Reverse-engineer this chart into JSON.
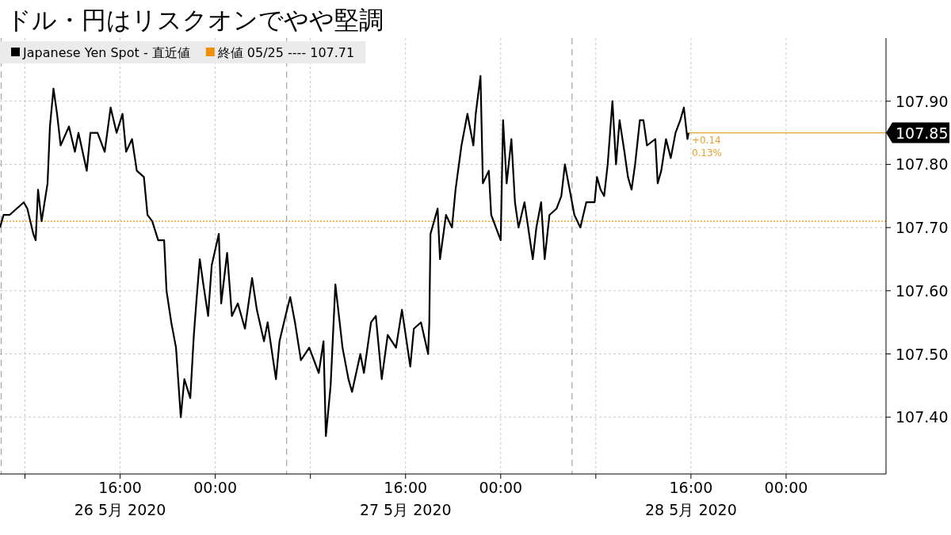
{
  "chart_data": {
    "type": "line",
    "title": "ドル・円はリスクオンでやや堅調",
    "x": [
      "2020-05-26T05:54",
      "2020-05-26T06:12",
      "2020-05-26T06:42",
      "2020-05-26T07:54",
      "2020-05-26T08:12",
      "2020-05-26T08:42",
      "2020-05-26T08:54",
      "2020-05-26T09:06",
      "2020-05-26T09:24",
      "2020-05-26T09:54",
      "2020-05-26T10:06",
      "2020-05-26T10:24",
      "2020-05-26T10:42",
      "2020-05-26T11:00",
      "2020-05-26T11:42",
      "2020-05-26T12:12",
      "2020-05-26T12:30",
      "2020-05-26T13:12",
      "2020-05-26T13:30",
      "2020-05-26T14:06",
      "2020-05-26T14:42",
      "2020-05-26T15:12",
      "2020-05-26T15:42",
      "2020-05-26T16:12",
      "2020-05-26T16:30",
      "2020-05-26T17:00",
      "2020-05-26T17:24",
      "2020-05-26T18:00",
      "2020-05-26T18:18",
      "2020-05-26T18:42",
      "2020-05-26T19:12",
      "2020-05-26T19:42",
      "2020-05-26T19:54",
      "2020-05-26T20:18",
      "2020-05-26T20:30",
      "2020-05-26T20:42",
      "2020-05-26T21:06",
      "2020-05-26T21:24",
      "2020-05-26T21:54",
      "2020-05-26T22:12",
      "2020-05-26T22:24",
      "2020-05-26T22:42",
      "2020-05-26T23:00",
      "2020-05-26T23:24",
      "2020-05-26T23:42",
      "2020-05-27T00:18",
      "2020-05-27T00:30",
      "2020-05-27T01:00",
      "2020-05-27T01:24",
      "2020-05-27T01:54",
      "2020-05-27T02:30",
      "2020-05-27T03:06",
      "2020-05-27T03:30",
      "2020-05-27T04:06",
      "2020-05-27T04:24",
      "2020-05-27T05:06",
      "2020-05-27T05:24",
      "2020-05-27T05:54",
      "2020-05-27T06:18",
      "2020-05-27T06:42",
      "2020-05-27T07:12",
      "2020-05-27T07:54",
      "2020-05-27T08:42",
      "2020-05-27T09:06",
      "2020-05-27T09:18",
      "2020-05-27T09:42",
      "2020-05-27T10:06",
      "2020-05-27T10:42",
      "2020-05-27T11:12",
      "2020-05-27T11:30",
      "2020-05-27T12:12",
      "2020-05-27T12:30",
      "2020-05-27T13:06",
      "2020-05-27T13:30",
      "2020-05-27T14:00",
      "2020-05-27T14:30",
      "2020-05-27T15:12",
      "2020-05-27T15:42",
      "2020-05-27T16:24",
      "2020-05-27T16:42",
      "2020-05-27T17:18",
      "2020-05-27T17:54",
      "2020-05-27T18:00",
      "2020-05-27T18:06",
      "2020-05-27T18:42",
      "2020-05-27T18:54",
      "2020-05-27T19:24",
      "2020-05-27T19:54",
      "2020-05-27T20:12",
      "2020-05-27T20:42",
      "2020-05-27T21:12",
      "2020-05-27T21:42",
      "2020-05-27T21:54",
      "2020-05-27T22:18",
      "2020-05-27T22:30",
      "2020-05-27T23:00",
      "2020-05-27T23:12",
      "2020-05-28T00:00",
      "2020-05-28T00:12",
      "2020-05-28T00:30",
      "2020-05-28T00:54",
      "2020-05-28T01:12",
      "2020-05-28T01:30",
      "2020-05-28T02:00",
      "2020-05-28T02:42",
      "2020-05-28T03:00",
      "2020-05-28T03:24",
      "2020-05-28T03:42",
      "2020-05-28T04:06",
      "2020-05-28T04:42",
      "2020-05-28T05:06",
      "2020-05-28T05:24",
      "2020-05-28T05:54",
      "2020-05-28T06:12",
      "2020-05-28T06:42",
      "2020-05-28T07:12",
      "2020-05-28T07:54",
      "2020-05-28T08:06",
      "2020-05-28T08:24",
      "2020-05-28T08:42",
      "2020-05-28T09:00",
      "2020-05-28T09:24",
      "2020-05-28T09:42",
      "2020-05-28T10:00",
      "2020-05-28T10:24",
      "2020-05-28T10:42",
      "2020-05-28T11:00",
      "2020-05-28T11:18",
      "2020-05-28T11:42",
      "2020-05-28T12:00",
      "2020-05-28T12:18",
      "2020-05-28T13:00",
      "2020-05-28T13:12",
      "2020-05-28T13:30",
      "2020-05-28T13:54",
      "2020-05-28T14:18",
      "2020-05-28T14:42",
      "2020-05-28T15:06",
      "2020-05-28T15:24",
      "2020-05-28T15:42",
      "2020-05-28T15:48"
    ],
    "series": [
      {
        "name": "Japanese Yen Spot - 直近値",
        "color": "#000000",
        "values": [
          107.7,
          107.72,
          107.72,
          107.74,
          107.73,
          107.69,
          107.68,
          107.76,
          107.71,
          107.77,
          107.86,
          107.92,
          107.88,
          107.83,
          107.86,
          107.82,
          107.85,
          107.79,
          107.85,
          107.85,
          107.82,
          107.89,
          107.85,
          107.88,
          107.82,
          107.84,
          107.79,
          107.78,
          107.72,
          107.71,
          107.68,
          107.68,
          107.6,
          107.55,
          107.53,
          107.51,
          107.4,
          107.46,
          107.43,
          107.53,
          107.58,
          107.65,
          107.61,
          107.56,
          107.64,
          107.69,
          107.58,
          107.66,
          107.56,
          107.58,
          107.54,
          107.62,
          107.57,
          107.52,
          107.55,
          107.46,
          107.52,
          107.56,
          107.59,
          107.55,
          107.49,
          107.51,
          107.47,
          107.52,
          107.37,
          107.45,
          107.61,
          107.51,
          107.46,
          107.44,
          107.5,
          107.47,
          107.55,
          107.56,
          107.46,
          107.53,
          107.51,
          107.57,
          107.48,
          107.54,
          107.55,
          107.5,
          107.55,
          107.69,
          107.73,
          107.65,
          107.72,
          107.7,
          107.76,
          107.83,
          107.88,
          107.83,
          107.88,
          107.94,
          107.77,
          107.79,
          107.72,
          107.68,
          107.87,
          107.77,
          107.84,
          107.74,
          107.7,
          107.74,
          107.65,
          107.7,
          107.74,
          107.65,
          107.72,
          107.73,
          107.75,
          107.8,
          107.75,
          107.72,
          107.7,
          107.74,
          107.74,
          107.78,
          107.76,
          107.75,
          107.8,
          107.9,
          107.8,
          107.87,
          107.82,
          107.78,
          107.76,
          107.8,
          107.87,
          107.87,
          107.83,
          107.84,
          107.77,
          107.79,
          107.84,
          107.81,
          107.85,
          107.87,
          107.89,
          107.84,
          107.85
        ]
      }
    ],
    "xlim": [
      "2020-05-26T05:54",
      "2020-05-29T08:24"
    ],
    "xticks": [
      {
        "value": "2020-05-26T08:00",
        "label": null
      },
      {
        "value": "2020-05-26T16:00",
        "label": "16:00\n26 5月 2020"
      },
      {
        "value": "2020-05-27T00:00",
        "label": "00:00"
      },
      {
        "value": "2020-05-27T08:00",
        "label": null
      },
      {
        "value": "2020-05-27T16:00",
        "label": "16:00\n27 5月 2020"
      },
      {
        "value": "2020-05-28T00:00",
        "label": "00:00"
      },
      {
        "value": "2020-05-28T08:00",
        "label": null
      },
      {
        "value": "2020-05-28T16:00",
        "label": "16:00\n28 5月 2020"
      },
      {
        "value": "2020-05-29T00:00",
        "label": "00:00"
      }
    ],
    "ylim": [
      107.31,
      108.0
    ],
    "yticks": [
      {
        "value": 107.4,
        "label": "107.40"
      },
      {
        "value": 107.5,
        "label": "107.50"
      },
      {
        "value": 107.6,
        "label": "107.60"
      },
      {
        "value": 107.7,
        "label": "107.70"
      },
      {
        "value": 107.8,
        "label": "107.80"
      },
      {
        "value": 107.9,
        "label": "107.90"
      }
    ],
    "grid": true,
    "legend": "top left",
    "marker": "none",
    "line_style": "solid",
    "ref_lines": [
      {
        "axis": "y",
        "value": 107.71,
        "label": "終値 05/25 ---- 107.71",
        "color": "#f0900a",
        "line_style": "dotted"
      },
      {
        "axis": "y",
        "value": 107.85,
        "label": "107.85",
        "color": "#e8a030",
        "line_style": "solid"
      },
      {
        "axis": "x",
        "value": "2020-05-26T06:00",
        "label": null,
        "color": "#aaaaaa",
        "line_style": "dashed"
      },
      {
        "axis": "x",
        "value": "2020-05-27T06:00",
        "label": null,
        "color": "#aaaaaa",
        "line_style": "dashed"
      },
      {
        "axis": "x",
        "value": "2020-05-28T06:00",
        "label": null,
        "color": "#aaaaaa",
        "line_style": "dashed"
      }
    ],
    "annotations": [
      {
        "text": "+0.14",
        "x": "2020-05-28T15:48",
        "y": 107.85
      },
      {
        "text": "0.13%",
        "x": "2020-05-28T15:48",
        "y": 107.85
      }
    ]
  }
}
